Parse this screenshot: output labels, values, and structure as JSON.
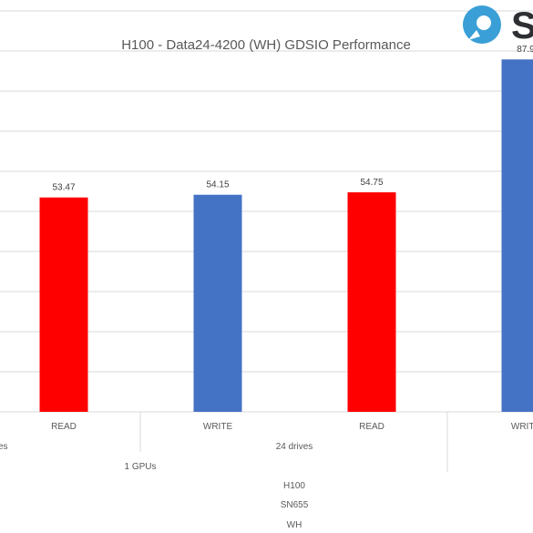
{
  "logo": {
    "text": "S",
    "color": "#3a9fd6"
  },
  "chart_data": {
    "type": "bar",
    "title": "H100 - Data24-4200 (WH) GDSIO Performance",
    "categories": [
      "READ",
      "WRITE",
      "READ",
      "WRITE"
    ],
    "values": [
      53.47,
      54.15,
      54.75,
      87.9
    ],
    "data_labels": [
      "53.47",
      "54.15",
      "54.75",
      "87.9"
    ],
    "bar_colors": [
      "#ff0000",
      "#4472c4",
      "#ff0000",
      "#4472c4"
    ],
    "group_levels": {
      "drives": [
        "es",
        "24 drives"
      ],
      "gpus": "1 GPUs",
      "platform": "H100",
      "drive_model": "SN655",
      "enclosure": "WH"
    },
    "ylim": [
      0,
      100
    ],
    "grid": true,
    "xlabel": "",
    "ylabel": ""
  }
}
